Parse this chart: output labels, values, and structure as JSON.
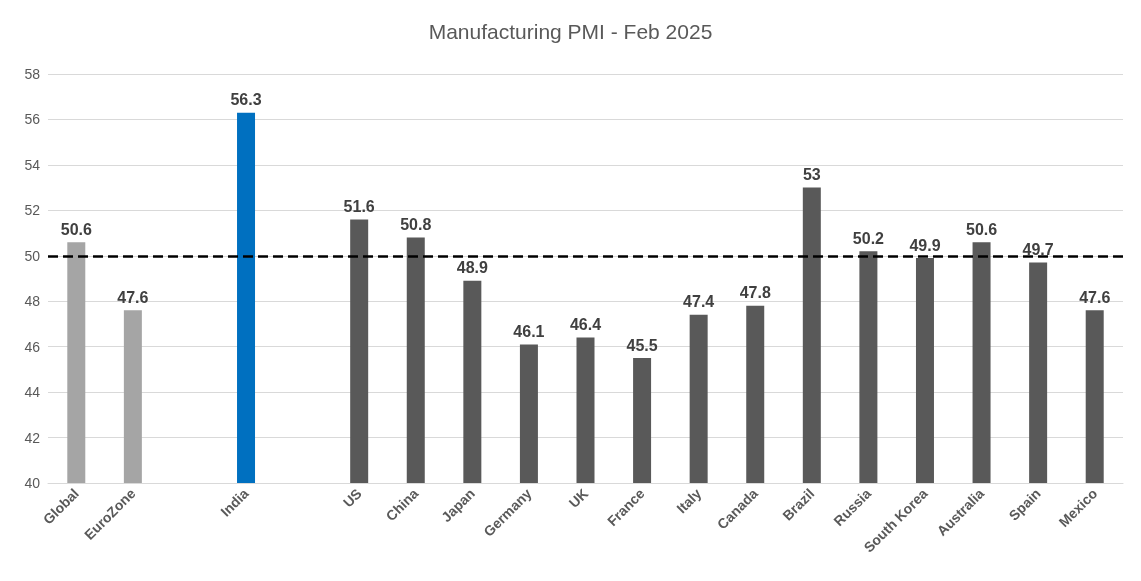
{
  "chart_data": {
    "type": "bar",
    "title": "Manufacturing PMI - Feb 2025",
    "categories": [
      "Global",
      "EuroZone",
      null,
      "India",
      null,
      "US",
      "China",
      "Japan",
      "Germany",
      "UK",
      "France",
      "Italy",
      "Canada",
      "Brazil",
      "Russia",
      "South Korea",
      "Australia",
      "Spain",
      "Mexico"
    ],
    "values": [
      50.6,
      47.6,
      null,
      56.3,
      null,
      51.6,
      50.8,
      48.9,
      46.1,
      46.4,
      45.5,
      47.4,
      47.8,
      53,
      50.2,
      49.9,
      50.6,
      49.7,
      47.6
    ],
    "colors": [
      "#a5a5a5",
      "#a5a5a5",
      null,
      "#0070c0",
      null,
      "#595959",
      "#595959",
      "#595959",
      "#595959",
      "#595959",
      "#595959",
      "#595959",
      "#595959",
      "#595959",
      "#595959",
      "#595959",
      "#595959",
      "#595959",
      "#595959"
    ],
    "ylim": [
      40,
      58
    ],
    "yticks": [
      40,
      42,
      44,
      46,
      48,
      50,
      52,
      54,
      56,
      58
    ],
    "grid": "y",
    "data_labels": true,
    "ref_lines": [
      {
        "axis": "y",
        "value": 50,
        "color": "#000000",
        "line_style": "dashed"
      }
    ]
  }
}
